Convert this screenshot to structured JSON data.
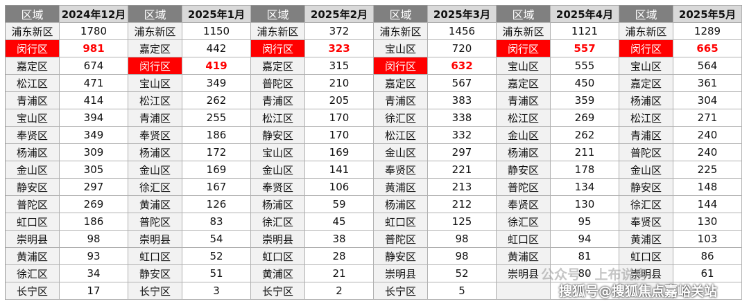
{
  "panels": [
    {
      "header": [
        "区域",
        "2024年12月"
      ],
      "rows": [
        {
          "region": "浦东新区",
          "value": 1780
        },
        {
          "region": "闵行区",
          "value": 981,
          "highlight": true
        },
        {
          "region": "嘉定区",
          "value": 674
        },
        {
          "region": "松江区",
          "value": 471
        },
        {
          "region": "青浦区",
          "value": 414
        },
        {
          "region": "宝山区",
          "value": 394
        },
        {
          "region": "奉贤区",
          "value": 349
        },
        {
          "region": "杨浦区",
          "value": 309
        },
        {
          "region": "金山区",
          "value": 305
        },
        {
          "region": "静安区",
          "value": 297
        },
        {
          "region": "普陀区",
          "value": 269
        },
        {
          "region": "虹口区",
          "value": 186
        },
        {
          "region": "崇明县",
          "value": 98
        },
        {
          "region": "黄浦区",
          "value": 93
        },
        {
          "region": "徐汇区",
          "value": 34
        },
        {
          "region": "长宁区",
          "value": 17
        }
      ]
    },
    {
      "header": [
        "区域",
        "2025年1月"
      ],
      "rows": [
        {
          "region": "浦东新区",
          "value": 1150
        },
        {
          "region": "嘉定区",
          "value": 442
        },
        {
          "region": "闵行区",
          "value": 419,
          "highlight": true
        },
        {
          "region": "宝山区",
          "value": 349
        },
        {
          "region": "松江区",
          "value": 262
        },
        {
          "region": "青浦区",
          "value": 255
        },
        {
          "region": "奉贤区",
          "value": 186
        },
        {
          "region": "杨浦区",
          "value": 172
        },
        {
          "region": "金山区",
          "value": 169
        },
        {
          "region": "徐汇区",
          "value": 167
        },
        {
          "region": "黄浦区",
          "value": 126
        },
        {
          "region": "普陀区",
          "value": 83
        },
        {
          "region": "崇明县",
          "value": 54
        },
        {
          "region": "虹口区",
          "value": 52
        },
        {
          "region": "静安区",
          "value": 51
        },
        {
          "region": "长宁区",
          "value": 3
        }
      ]
    },
    {
      "header": [
        "区域",
        "2025年2月"
      ],
      "rows": [
        {
          "region": "浦东新区",
          "value": 372
        },
        {
          "region": "闵行区",
          "value": 323,
          "highlight": true
        },
        {
          "region": "嘉定区",
          "value": 315
        },
        {
          "region": "普陀区",
          "value": 210
        },
        {
          "region": "青浦区",
          "value": 205
        },
        {
          "region": "松江区",
          "value": 170
        },
        {
          "region": "静安区",
          "value": 170
        },
        {
          "region": "宝山区",
          "value": 169
        },
        {
          "region": "金山区",
          "value": 141
        },
        {
          "region": "奉贤区",
          "value": 106
        },
        {
          "region": "杨浦区",
          "value": 59
        },
        {
          "region": "徐汇区",
          "value": 45
        },
        {
          "region": "崇明县",
          "value": 38
        },
        {
          "region": "虹口区",
          "value": 28
        },
        {
          "region": "黄浦区",
          "value": 21
        },
        {
          "region": "长宁区",
          "value": 2
        }
      ]
    },
    {
      "header": [
        "区域",
        "2025年3月"
      ],
      "rows": [
        {
          "region": "浦东新区",
          "value": 1456
        },
        {
          "region": "宝山区",
          "value": 720
        },
        {
          "region": "闵行区",
          "value": 632,
          "highlight": true
        },
        {
          "region": "嘉定区",
          "value": 567
        },
        {
          "region": "青浦区",
          "value": 383
        },
        {
          "region": "徐汇区",
          "value": 338
        },
        {
          "region": "松江区",
          "value": 332
        },
        {
          "region": "金山区",
          "value": 297
        },
        {
          "region": "奉贤区",
          "value": 221
        },
        {
          "region": "黄浦区",
          "value": 213
        },
        {
          "region": "杨浦区",
          "value": 212
        },
        {
          "region": "虹口区",
          "value": 125
        },
        {
          "region": "普陀区",
          "value": 98
        },
        {
          "region": "静安区",
          "value": 98
        },
        {
          "region": "崇明县",
          "value": 52
        },
        {
          "region": "长宁区",
          "value": 5
        }
      ]
    },
    {
      "header": [
        "区域",
        "2025年4月"
      ],
      "rows": [
        {
          "region": "浦东新区",
          "value": 1121
        },
        {
          "region": "闵行区",
          "value": 557,
          "highlight": true
        },
        {
          "region": "宝山区",
          "value": 555
        },
        {
          "region": "嘉定区",
          "value": 450
        },
        {
          "region": "青浦区",
          "value": 359
        },
        {
          "region": "松江区",
          "value": 269
        },
        {
          "region": "金山区",
          "value": 262
        },
        {
          "region": "杨浦区",
          "value": 211
        },
        {
          "region": "静安区",
          "value": 178
        },
        {
          "region": "普陀区",
          "value": 134
        },
        {
          "region": "奉贤区",
          "value": 130
        },
        {
          "region": "徐汇区",
          "value": 95
        },
        {
          "region": "虹口区",
          "value": 94
        },
        {
          "region": "黄浦区",
          "value": 81
        },
        {
          "region": "崇明县",
          "value": 80
        }
      ]
    },
    {
      "header": [
        "区域",
        "2025年5月"
      ],
      "rows": [
        {
          "region": "浦东新区",
          "value": 1289
        },
        {
          "region": "闵行区",
          "value": 665,
          "highlight": true
        },
        {
          "region": "宝山区",
          "value": 564
        },
        {
          "region": "嘉定区",
          "value": 361
        },
        {
          "region": "杨浦区",
          "value": 304
        },
        {
          "region": "松江区",
          "value": 271
        },
        {
          "region": "青浦区",
          "value": 240
        },
        {
          "region": "普陀区",
          "value": 240
        },
        {
          "region": "金山区",
          "value": 225
        },
        {
          "region": "静安区",
          "value": 148
        },
        {
          "region": "徐汇区",
          "value": 144
        },
        {
          "region": "奉贤区",
          "value": 130
        },
        {
          "region": "黄浦区",
          "value": 103
        },
        {
          "region": "虹口区",
          "value": 86
        },
        {
          "region": "崇明县",
          "value": 61
        }
      ]
    }
  ],
  "watermarks": [
    "公众号 · 上布说房",
    "搜狐号@搜狐焦点嘉峪关站"
  ]
}
